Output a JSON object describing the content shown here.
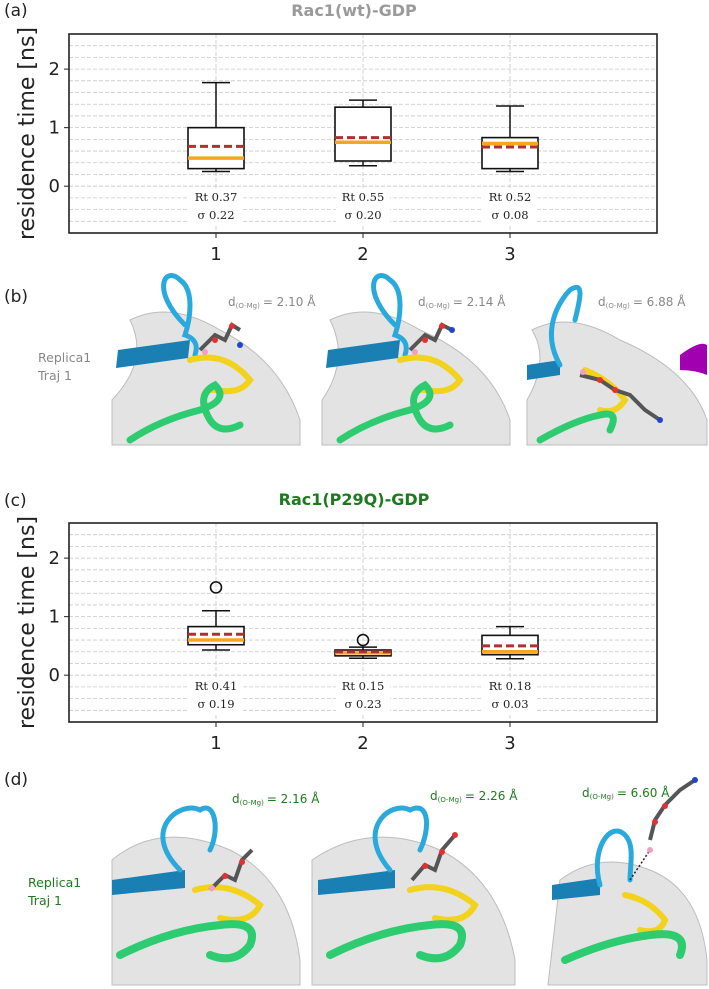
{
  "colors": {
    "wt_title": "#9a9a9a",
    "mut_title": "#1e7a1e",
    "box": "#111111",
    "median": "#f5a623",
    "mean": "#b03030",
    "grid": "#c8c8c8",
    "switch1": "#2aa9dd",
    "p_loop": "#f2d21a",
    "helix": "#2ecc71",
    "strand": "#1a7fb3",
    "gdp": "#555555",
    "ribbon": "#e2e2e2",
    "magenta": "#a000b0"
  },
  "panels": {
    "a": "(a)",
    "b": "(b)",
    "c": "(c)",
    "d": "(d)"
  },
  "panel_b": {
    "replica_line1": "Replica1",
    "replica_line2": "Traj 1",
    "distances": [
      {
        "prefix": "d",
        "sub": "(O-Mg)",
        "value": "= 2.10 Å"
      },
      {
        "prefix": "d",
        "sub": "(O-Mg)",
        "value": "= 2.14 Å"
      },
      {
        "prefix": "d",
        "sub": "(O-Mg)",
        "value": "= 6.88 Å"
      }
    ]
  },
  "panel_d": {
    "replica_line1": "Replica1",
    "replica_line2": "Traj 1",
    "distances": [
      {
        "prefix": "d",
        "sub": "(O-Mg)",
        "value": "= 2.16 Å"
      },
      {
        "prefix": "d",
        "sub": "(O-Mg)",
        "value": "= 2.26 Å"
      },
      {
        "prefix": "d",
        "sub": "(O-Mg)",
        "value": "= 6.60 Å"
      }
    ]
  },
  "chart_data": [
    {
      "type": "box",
      "title": "Rac1(wt)-GDP",
      "ylabel": "residence time [ns]",
      "xlabel": "",
      "ylim": [
        -0.8,
        2.6
      ],
      "yticks": [
        0,
        1,
        2
      ],
      "categories": [
        "1",
        "2",
        "3"
      ],
      "grid": true,
      "boxes": [
        {
          "whisker_low": 0.25,
          "q1": 0.3,
          "median": 0.48,
          "q3": 1.0,
          "whisker_high": 1.77,
          "mean": 0.68,
          "outliers": [],
          "rt": "Rt 0.37",
          "sigma": "σ 0.22"
        },
        {
          "whisker_low": 0.35,
          "q1": 0.43,
          "median": 0.75,
          "q3": 1.35,
          "whisker_high": 1.47,
          "mean": 0.83,
          "outliers": [],
          "rt": "Rt 0.55",
          "sigma": "σ 0.20"
        },
        {
          "whisker_low": 0.25,
          "q1": 0.3,
          "median": 0.73,
          "q3": 0.83,
          "whisker_high": 1.37,
          "mean": 0.67,
          "outliers": [],
          "rt": "Rt 0.52",
          "sigma": "σ 0.08"
        }
      ]
    },
    {
      "type": "box",
      "title": "Rac1(P29Q)-GDP",
      "ylabel": "residence time [ns]",
      "xlabel": "",
      "ylim": [
        -0.8,
        2.6
      ],
      "yticks": [
        0,
        1,
        2
      ],
      "categories": [
        "1",
        "2",
        "3"
      ],
      "grid": true,
      "boxes": [
        {
          "whisker_low": 0.43,
          "q1": 0.52,
          "median": 0.6,
          "q3": 0.83,
          "whisker_high": 1.1,
          "mean": 0.7,
          "outliers": [
            1.5
          ],
          "rt": "Rt 0.41",
          "sigma": "σ 0.19"
        },
        {
          "whisker_low": 0.29,
          "q1": 0.33,
          "median": 0.38,
          "q3": 0.43,
          "whisker_high": 0.48,
          "mean": 0.4,
          "outliers": [
            0.6
          ],
          "rt": "Rt 0.15",
          "sigma": "σ 0.23"
        },
        {
          "whisker_low": 0.28,
          "q1": 0.35,
          "median": 0.4,
          "q3": 0.68,
          "whisker_high": 0.83,
          "mean": 0.5,
          "outliers": [],
          "rt": "Rt 0.18",
          "sigma": "σ 0.03"
        }
      ]
    }
  ]
}
